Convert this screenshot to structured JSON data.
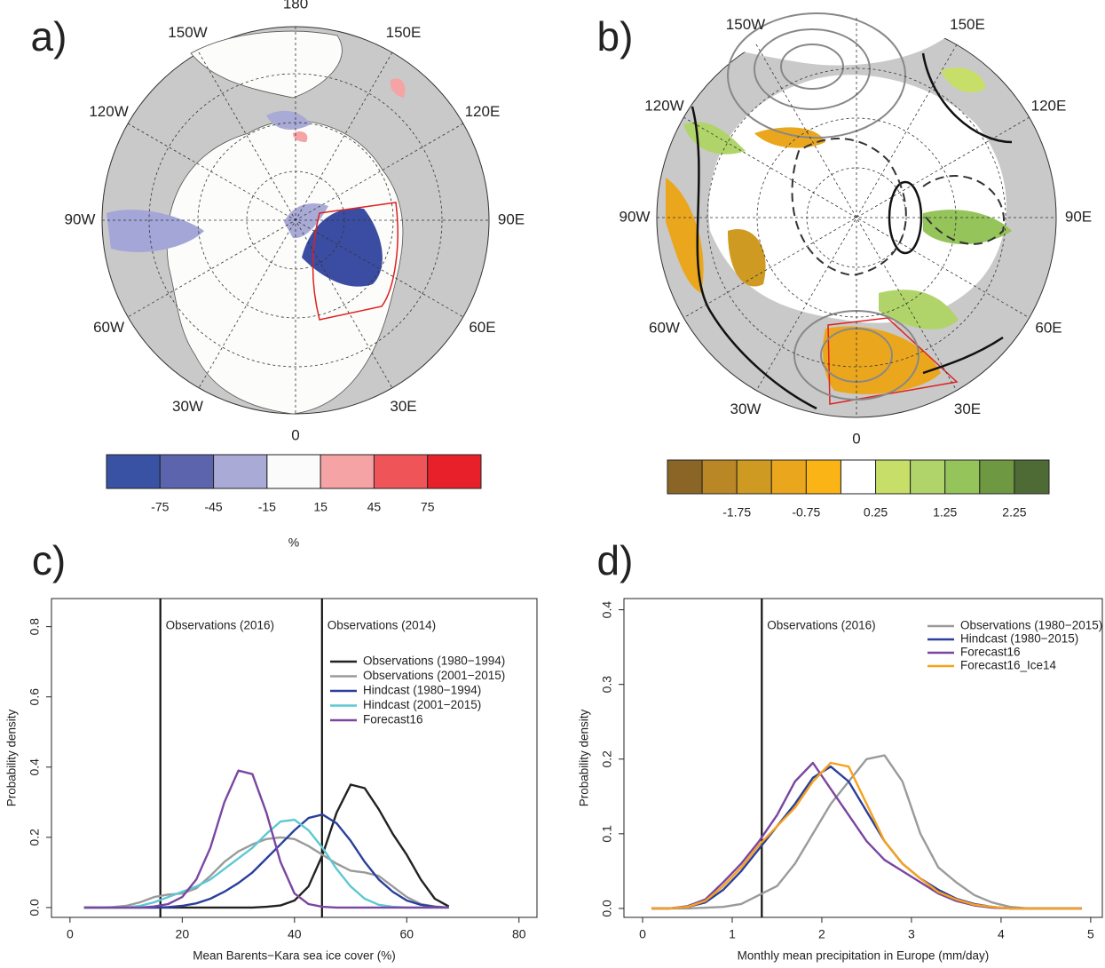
{
  "chart_data": [
    {
      "type": "map",
      "panel": "a)",
      "lon_labels": [
        "180",
        "150E",
        "120E",
        "90E",
        "60E",
        "30E",
        "0",
        "30W",
        "60W",
        "90W",
        "120W",
        "150W"
      ],
      "colorbar": {
        "colors": [
          "#3a52a3",
          "#5c64ad",
          "#a9aad6",
          "#fbfbfb",
          "#f6a3a6",
          "#ef5459",
          "#e8202a"
        ],
        "clim": [
          -105,
          105
        ],
        "ticks": [
          -75,
          -45,
          -15,
          15,
          45,
          75
        ],
        "label": "%"
      }
    },
    {
      "type": "map",
      "panel": "b)",
      "lon_labels": [
        "180",
        "150E",
        "120E",
        "90E",
        "60E",
        "30E",
        "0",
        "30W",
        "60W",
        "90W",
        "120W",
        "150W"
      ],
      "colorbar": {
        "colors": [
          "#8a6526",
          "#b98726",
          "#cf9a22",
          "#eaa71d",
          "#fbb415",
          "#ffffff",
          "#c7df68",
          "#b0d46a",
          "#95c45a",
          "#6f9842",
          "#4e6b35"
        ],
        "clim": [
          -2.75,
          2.75
        ],
        "ticks": [
          -1.75,
          -0.75,
          0.25,
          1.25,
          2.25
        ]
      }
    },
    {
      "type": "line",
      "panel": "c)",
      "xlabel": "Mean Barents−Kara sea ice cover (%)",
      "ylabel": "Probability density",
      "xlim": [
        -3.3,
        83.2
      ],
      "ylim": [
        -0.028,
        0.88
      ],
      "xticks": [
        0,
        20,
        40,
        60,
        80
      ],
      "yticks": [
        {
          "value": 0,
          "label": "0.0"
        },
        0.2,
        0.4,
        0.6,
        0.8
      ],
      "vlines": [
        {
          "x": 16.1,
          "label": "Observations (2016)"
        },
        {
          "x": 44.9,
          "label": "Observations (2014)"
        }
      ],
      "x": [
        2.5,
        5,
        7.5,
        10,
        12.5,
        15,
        17.5,
        20,
        22.5,
        25,
        27.5,
        30,
        32.5,
        35,
        37.5,
        40,
        42.5,
        45,
        47.5,
        50,
        52.5,
        55,
        57.5,
        60,
        62.5,
        65,
        67.5
      ],
      "series": [
        {
          "name": "Observations (1980−1994)",
          "color": "#222222",
          "values": [
            0,
            0,
            0,
            0,
            0,
            0,
            0,
            0,
            0,
            0,
            0,
            0,
            0,
            0.002,
            0.006,
            0.02,
            0.06,
            0.15,
            0.27,
            0.35,
            0.34,
            0.28,
            0.21,
            0.15,
            0.08,
            0.025,
            0.003
          ]
        },
        {
          "name": "Observations (2001−2015)",
          "color": "#9a9a9a",
          "values": [
            0,
            0,
            0.001,
            0.005,
            0.015,
            0.03,
            0.037,
            0.04,
            0.055,
            0.09,
            0.13,
            0.16,
            0.18,
            0.195,
            0.2,
            0.195,
            0.175,
            0.15,
            0.125,
            0.105,
            0.1,
            0.09,
            0.06,
            0.03,
            0.01,
            0.003,
            0
          ]
        },
        {
          "name": "Hindcast (1980−1994)",
          "color": "#2b3f9b",
          "values": [
            0,
            0,
            0,
            0,
            0,
            0,
            0.001,
            0.005,
            0.012,
            0.025,
            0.045,
            0.07,
            0.1,
            0.14,
            0.18,
            0.22,
            0.255,
            0.265,
            0.24,
            0.19,
            0.13,
            0.08,
            0.045,
            0.02,
            0.008,
            0.002,
            0
          ]
        },
        {
          "name": "Hindcast (2001−2015)",
          "color": "#5cc8d4",
          "values": [
            0,
            0,
            0,
            0,
            0.005,
            0.015,
            0.03,
            0.045,
            0.06,
            0.08,
            0.11,
            0.14,
            0.17,
            0.21,
            0.245,
            0.25,
            0.22,
            0.17,
            0.11,
            0.06,
            0.025,
            0.008,
            0.002,
            0,
            0,
            0,
            0
          ]
        },
        {
          "name": "Forecast16",
          "color": "#7a46a0",
          "values": [
            0,
            0,
            0,
            0,
            0,
            0.003,
            0.01,
            0.03,
            0.08,
            0.17,
            0.3,
            0.39,
            0.38,
            0.27,
            0.13,
            0.04,
            0.01,
            0.002,
            0,
            0,
            0,
            0,
            0,
            0,
            0,
            0,
            0
          ]
        }
      ]
    },
    {
      "type": "line",
      "panel": "d)",
      "xlabel": "Monthly mean precipitation in Europe (mm/day)",
      "ylabel": "Probability density",
      "xlim": [
        -0.208,
        5.13
      ],
      "ylim": [
        -0.012,
        0.415
      ],
      "xticks": [
        0,
        1,
        2,
        3,
        4,
        5
      ],
      "yticks": [
        {
          "value": 0,
          "label": "0.0"
        },
        0.1,
        0.2,
        0.3,
        0.4
      ],
      "vlines": [
        {
          "x": 1.33,
          "label": "Observations (2016)"
        }
      ],
      "x": [
        0.1,
        0.3,
        0.5,
        0.7,
        0.9,
        1.1,
        1.3,
        1.5,
        1.7,
        1.9,
        2.1,
        2.3,
        2.5,
        2.7,
        2.9,
        3.1,
        3.3,
        3.5,
        3.7,
        3.9,
        4.1,
        4.3,
        4.5,
        4.7,
        4.9
      ],
      "series": [
        {
          "name": "Observations (1980−2015)",
          "color": "#9a9a9a",
          "values": [
            0,
            0,
            0,
            0.001,
            0.002,
            0.006,
            0.018,
            0.03,
            0.06,
            0.1,
            0.14,
            0.17,
            0.2,
            0.205,
            0.17,
            0.1,
            0.055,
            0.035,
            0.018,
            0.008,
            0.002,
            0,
            0,
            0,
            0
          ]
        },
        {
          "name": "Hindcast (1980−2015)",
          "color": "#2b3f9b",
          "values": [
            0,
            0,
            0.002,
            0.008,
            0.025,
            0.05,
            0.08,
            0.11,
            0.14,
            0.175,
            0.19,
            0.17,
            0.13,
            0.09,
            0.06,
            0.04,
            0.025,
            0.013,
            0.006,
            0.002,
            0,
            0,
            0,
            0,
            0
          ]
        },
        {
          "name": "Forecast16",
          "color": "#7a46a0",
          "values": [
            0,
            0,
            0.003,
            0.012,
            0.035,
            0.06,
            0.09,
            0.125,
            0.17,
            0.195,
            0.16,
            0.125,
            0.09,
            0.065,
            0.05,
            0.035,
            0.02,
            0.01,
            0.004,
            0.001,
            0,
            0,
            0,
            0,
            0
          ]
        },
        {
          "name": "Forecast16_Ice14",
          "color": "#f7a21b",
          "values": [
            0,
            0,
            0.002,
            0.01,
            0.03,
            0.055,
            0.085,
            0.11,
            0.135,
            0.17,
            0.195,
            0.19,
            0.14,
            0.09,
            0.06,
            0.04,
            0.022,
            0.012,
            0.005,
            0.002,
            0,
            0,
            0,
            0,
            0
          ]
        }
      ]
    }
  ]
}
